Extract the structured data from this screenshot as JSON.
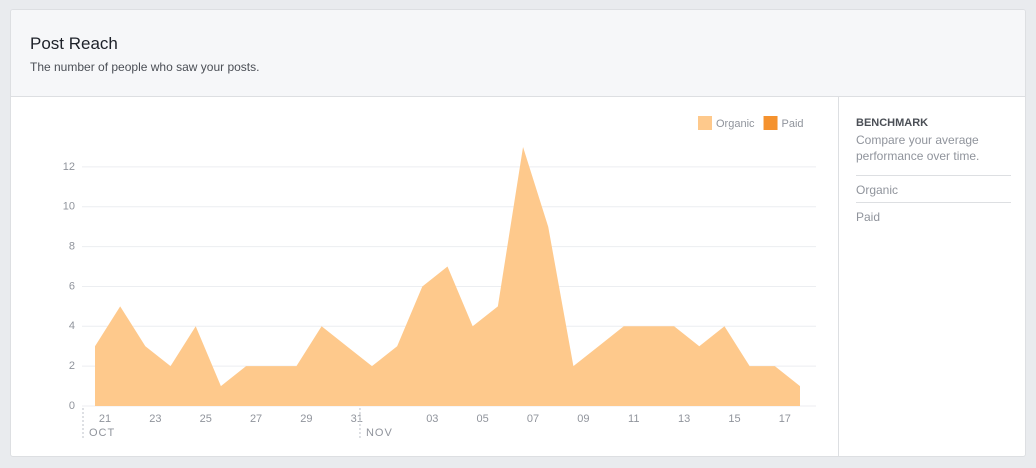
{
  "header": {
    "title": "Post Reach",
    "subtitle": "The number of people who saw your posts."
  },
  "chart_data": {
    "type": "area",
    "categories": [
      "21",
      null,
      "23",
      null,
      "25",
      null,
      "27",
      null,
      "29",
      null,
      "31",
      null,
      null,
      "03",
      null,
      "05",
      null,
      "07",
      null,
      "09",
      null,
      "11",
      null,
      "13",
      null,
      "15",
      null,
      "17",
      null
    ],
    "months": [
      {
        "label": "OCT",
        "index": 0
      },
      {
        "label": "NOV",
        "index": 11
      }
    ],
    "series": [
      {
        "name": "Organic",
        "color": "#fec98c",
        "values": [
          3,
          5,
          3,
          2,
          4,
          1,
          2,
          2,
          2,
          4,
          3,
          2,
          3,
          6,
          7,
          4,
          5,
          13,
          9,
          2,
          3,
          4,
          4,
          4,
          3,
          4,
          2,
          2,
          1
        ]
      },
      {
        "name": "Paid",
        "color": "#f5922e"
      }
    ],
    "ylim": [
      0,
      13
    ],
    "yticks": [
      0,
      2,
      4,
      6,
      8,
      10,
      12
    ],
    "grid": true
  },
  "benchmark": {
    "heading": "BENCHMARK",
    "description": "Compare your average performance over time.",
    "links": [
      "Organic",
      "Paid"
    ]
  }
}
